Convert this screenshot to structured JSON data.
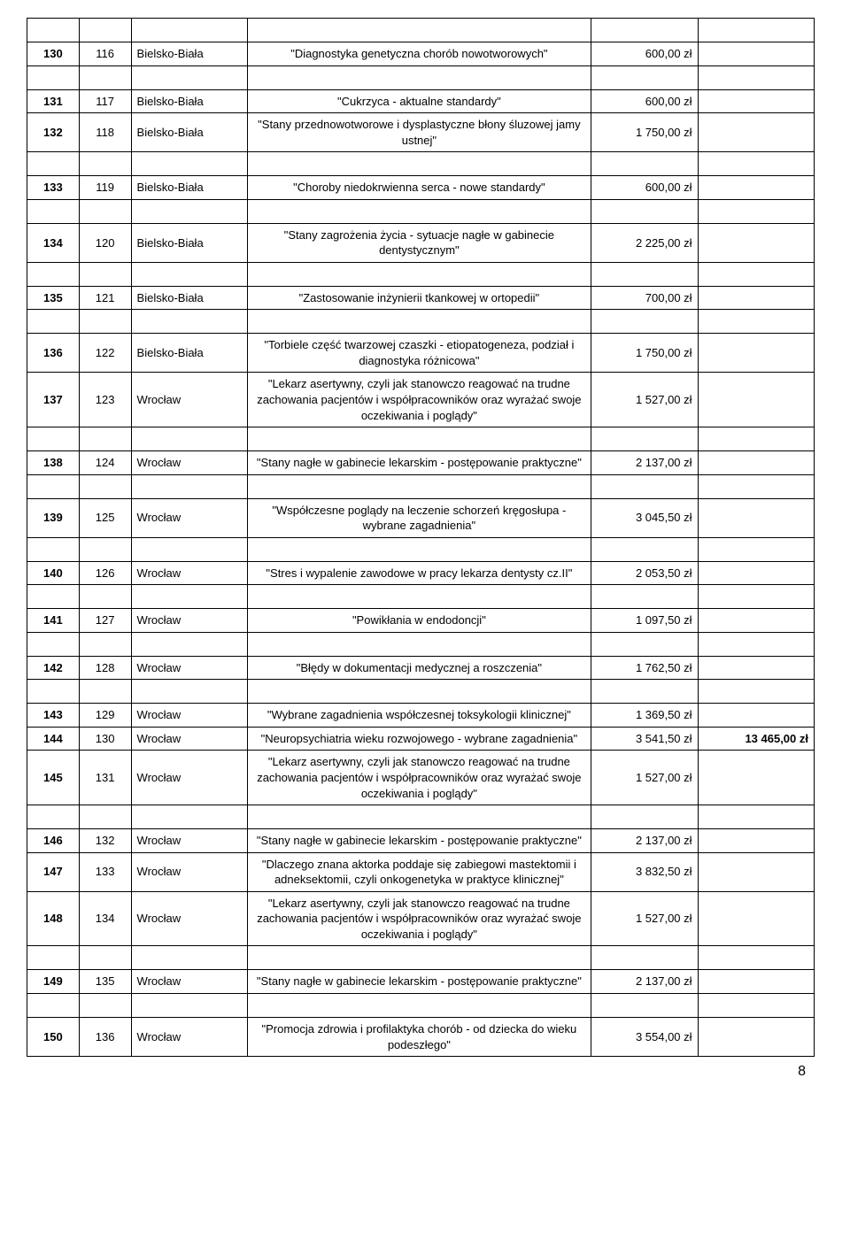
{
  "table": {
    "rows": [
      {
        "type": "spacer"
      },
      {
        "c0": "130",
        "c1": "116",
        "c2": "Bielsko-Biała",
        "c3": "\"Diagnostyka genetyczna chorób nowotworowych\"",
        "c4": "600,00 zł",
        "c5": ""
      },
      {
        "type": "spacer"
      },
      {
        "c0": "131",
        "c1": "117",
        "c2": "Bielsko-Biała",
        "c3": "\"Cukrzyca - aktualne standardy\"",
        "c4": "600,00 zł",
        "c5": ""
      },
      {
        "c0": "132",
        "c1": "118",
        "c2": "Bielsko-Biała",
        "c3": "\"Stany przednowotworowe i dysplastyczne błony śluzowej jamy ustnej\"",
        "c4": "1 750,00 zł",
        "c5": ""
      },
      {
        "type": "spacer"
      },
      {
        "c0": "133",
        "c1": "119",
        "c2": "Bielsko-Biała",
        "c3": "\"Choroby niedokrwienna serca - nowe standardy\"",
        "c4": "600,00 zł",
        "c5": ""
      },
      {
        "type": "spacer"
      },
      {
        "c0": "134",
        "c1": "120",
        "c2": "Bielsko-Biała",
        "c3": "\"Stany zagrożenia życia - sytuacje nagłe w gabinecie dentystycznym\"",
        "c4": "2 225,00 zł",
        "c5": ""
      },
      {
        "type": "spacer"
      },
      {
        "c0": "135",
        "c1": "121",
        "c2": "Bielsko-Biała",
        "c3": "\"Zastosowanie inżynierii tkankowej w ortopedii\"",
        "c4": "700,00 zł",
        "c5": ""
      },
      {
        "type": "spacer"
      },
      {
        "c0": "136",
        "c1": "122",
        "c2": "Bielsko-Biała",
        "c3": "\"Torbiele część twarzowej czaszki - etiopatogeneza, podział i diagnostyka różnicowa\"",
        "c4": "1 750,00 zł",
        "c5": ""
      },
      {
        "c0": "137",
        "c1": "123",
        "c2": "Wrocław",
        "c3": "\"Lekarz asertywny, czyli jak stanowczo reagować na trudne zachowania pacjentów i współpracowników oraz wyrażać swoje oczekiwania i poglądy\"",
        "c4": "1 527,00 zł",
        "c5": ""
      },
      {
        "type": "spacer"
      },
      {
        "c0": "138",
        "c1": "124",
        "c2": "Wrocław",
        "c3": "\"Stany nagłe w gabinecie lekarskim - postępowanie praktyczne\"",
        "c4": "2 137,00 zł",
        "c5": ""
      },
      {
        "type": "spacer"
      },
      {
        "c0": "139",
        "c1": "125",
        "c2": "Wrocław",
        "c3": "\"Współczesne poglądy na leczenie schorzeń kręgosłupa - wybrane zagadnienia\"",
        "c4": "3 045,50 zł",
        "c5": ""
      },
      {
        "type": "spacer"
      },
      {
        "c0": "140",
        "c1": "126",
        "c2": "Wrocław",
        "c3": "\"Stres i wypalenie zawodowe w pracy lekarza dentysty cz.II\"",
        "c4": "2 053,50 zł",
        "c5": ""
      },
      {
        "type": "spacer"
      },
      {
        "c0": "141",
        "c1": "127",
        "c2": "Wrocław",
        "c3": "\"Powikłania w endodoncji\"",
        "c4": "1 097,50 zł",
        "c5": ""
      },
      {
        "type": "spacer"
      },
      {
        "c0": "142",
        "c1": "128",
        "c2": "Wrocław",
        "c3": "\"Błędy w dokumentacji medycznej a roszczenia\"",
        "c4": "1 762,50 zł",
        "c5": ""
      },
      {
        "type": "spacer"
      },
      {
        "c0": "143",
        "c1": "129",
        "c2": "Wrocław",
        "c3": "\"Wybrane zagadnienia współczesnej toksykologii klinicznej\"",
        "c4": "1 369,50 zł",
        "c5": ""
      },
      {
        "c0": "144",
        "c1": "130",
        "c2": "Wrocław",
        "c3": "\"Neuropsychiatria wieku rozwojowego - wybrane zagadnienia\"",
        "c4": "3 541,50 zł",
        "c5": "13 465,00 zł"
      },
      {
        "c0": "145",
        "c1": "131",
        "c2": "Wrocław",
        "c3": "\"Lekarz asertywny, czyli jak stanowczo reagować na trudne zachowania pacjentów i współpracowników oraz wyrażać swoje oczekiwania i poglądy\"",
        "c4": "1 527,00 zł",
        "c5": ""
      },
      {
        "type": "spacer"
      },
      {
        "c0": "146",
        "c1": "132",
        "c2": "Wrocław",
        "c3": "\"Stany nagłe w gabinecie lekarskim - postępowanie praktyczne\"",
        "c4": "2 137,00 zł",
        "c5": ""
      },
      {
        "c0": "147",
        "c1": "133",
        "c2": "Wrocław",
        "c3": "\"Dlaczego znana aktorka poddaje się zabiegowi mastektomii i adneksektomii, czyli onkogenetyka w praktyce klinicznej\"",
        "c4": "3 832,50 zł",
        "c5": ""
      },
      {
        "c0": "148",
        "c1": "134",
        "c2": "Wrocław",
        "c3": "\"Lekarz asertywny, czyli jak stanowczo reagować na trudne zachowania pacjentów i współpracowników oraz wyrażać swoje oczekiwania i poglądy\"",
        "c4": "1 527,00 zł",
        "c5": ""
      },
      {
        "type": "spacer"
      },
      {
        "c0": "149",
        "c1": "135",
        "c2": "Wrocław",
        "c3": "\"Stany nagłe w gabinecie lekarskim - postępowanie praktyczne\"",
        "c4": "2 137,00 zł",
        "c5": ""
      },
      {
        "type": "spacer"
      },
      {
        "c0": "150",
        "c1": "136",
        "c2": "Wrocław",
        "c3": "\"Promocja zdrowia i profilaktyka chorób - od dziecka do wieku podeszłego\"",
        "c4": "3 554,00 zł",
        "c5": ""
      }
    ]
  },
  "pagenum": "8"
}
